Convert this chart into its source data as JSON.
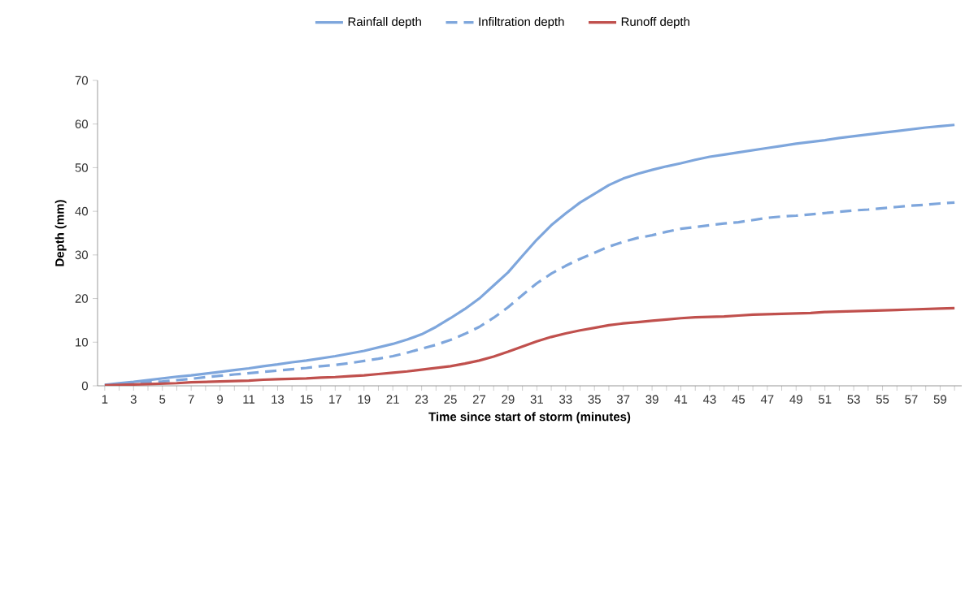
{
  "chart_data": {
    "type": "line",
    "xlabel": "Time since start of storm (minutes)",
    "ylabel": "Depth (mm)",
    "categories": [
      "1",
      null,
      "3",
      null,
      "5",
      null,
      "7",
      null,
      "9",
      null,
      "11",
      null,
      "13",
      null,
      "15",
      null,
      "17",
      null,
      "19",
      null,
      "21",
      null,
      "23",
      null,
      "25",
      null,
      "27",
      null,
      "29",
      null,
      "31",
      null,
      "33",
      null,
      "35",
      null,
      "37",
      null,
      "39",
      null,
      "41",
      null,
      "43",
      null,
      "45",
      null,
      "47",
      null,
      "49",
      null,
      "51",
      null,
      "53",
      null,
      "55",
      null,
      "57",
      null,
      "59",
      null
    ],
    "series": [
      {
        "name": "Rainfall depth",
        "color": "#7ea6dc",
        "line_style": "solid",
        "values": [
          0.2,
          0.6,
          0.9,
          1.3,
          1.7,
          2.1,
          2.4,
          2.8,
          3.2,
          3.6,
          4.0,
          4.5,
          4.9,
          5.4,
          5.8,
          6.3,
          6.8,
          7.4,
          8.0,
          8.8,
          9.6,
          10.6,
          11.8,
          13.5,
          15.5,
          17.6,
          20,
          23,
          26,
          29.8,
          33.5,
          36.8,
          39.5,
          42,
          44,
          46,
          47.5,
          48.6,
          49.5,
          50.3,
          51,
          51.8,
          52.5,
          53,
          53.5,
          54,
          54.5,
          55,
          55.5,
          55.9,
          56.3,
          56.8,
          57.2,
          57.6,
          58,
          58.4,
          58.8,
          59.2,
          59.5,
          59.8
        ]
      },
      {
        "name": "Infiltration depth",
        "color": "#7ea6dc",
        "line_style": "dashed",
        "values": [
          0.1,
          0.3,
          0.6,
          0.8,
          1.0,
          1.3,
          1.6,
          2.0,
          2.3,
          2.6,
          2.9,
          3.2,
          3.5,
          3.8,
          4.1,
          4.5,
          4.8,
          5.2,
          5.7,
          6.2,
          6.8,
          7.6,
          8.5,
          9.4,
          10.5,
          11.9,
          13.5,
          15.6,
          18,
          20.8,
          23.5,
          25.7,
          27.5,
          29.1,
          30.5,
          31.9,
          33,
          33.9,
          34.5,
          35.3,
          36,
          36.4,
          36.8,
          37.2,
          37.5,
          38,
          38.5,
          38.8,
          39,
          39.3,
          39.6,
          39.9,
          40.2,
          40.4,
          40.7,
          41,
          41.3,
          41.5,
          41.8,
          42
        ]
      },
      {
        "name": "Runoff depth",
        "color": "#c0504d",
        "line_style": "solid",
        "values": [
          0.1,
          0.2,
          0.3,
          0.4,
          0.5,
          0.6,
          0.8,
          0.9,
          1.0,
          1.1,
          1.2,
          1.4,
          1.5,
          1.6,
          1.7,
          1.9,
          2.0,
          2.2,
          2.4,
          2.7,
          3.0,
          3.3,
          3.7,
          4.1,
          4.5,
          5.1,
          5.8,
          6.7,
          7.8,
          9.0,
          10.2,
          11.2,
          12,
          12.7,
          13.3,
          13.9,
          14.3,
          14.6,
          14.9,
          15.2,
          15.5,
          15.7,
          15.8,
          15.9,
          16.1,
          16.3,
          16.4,
          16.5,
          16.6,
          16.7,
          16.9,
          17,
          17.1,
          17.2,
          17.3,
          17.4,
          17.5,
          17.6,
          17.7,
          17.8
        ]
      }
    ],
    "ylim": [
      0,
      70
    ],
    "yticks": [
      0,
      10,
      20,
      30,
      40,
      50,
      60,
      70
    ],
    "grid": false,
    "legend": "top",
    "marker": "none"
  }
}
